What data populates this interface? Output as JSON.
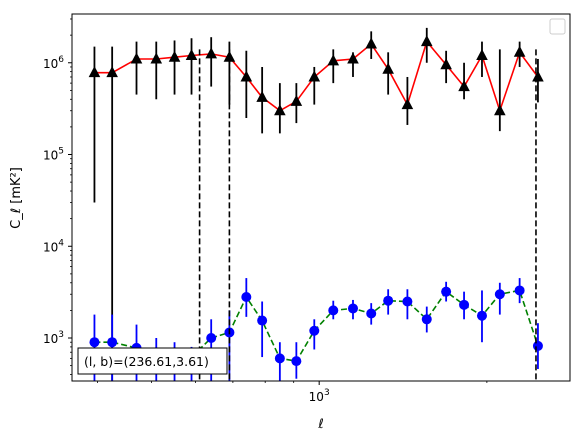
{
  "chart_data": {
    "type": "line",
    "title": "",
    "xlabel": "ℓ",
    "ylabel": "C_ℓ [mK²]",
    "x_scale": "log",
    "y_scale": "log",
    "xlim": [
      360,
      2820
    ],
    "ylim": [
      340,
      3400000
    ],
    "x_ticks": [
      {
        "value": 1000,
        "base": "10",
        "exp": "3"
      }
    ],
    "y_ticks": [
      {
        "value": 1000,
        "base": "10",
        "exp": "3"
      },
      {
        "value": 10000,
        "base": "10",
        "exp": "4"
      },
      {
        "value": 100000,
        "base": "10",
        "exp": "5"
      },
      {
        "value": 1000000,
        "base": "10",
        "exp": "6"
      }
    ],
    "grid": false,
    "legend": {
      "position": "upper right",
      "entries": []
    },
    "annotation": {
      "text": "(l, b)=(236.61,3.61)",
      "position": "lower left"
    },
    "vlines": [
      610,
      690,
      2450
    ],
    "series": [
      {
        "marker": "triangle",
        "color": "#000000",
        "line_color": "#ff0000",
        "line_style": "solid",
        "x": [
          395,
          425,
          470,
          510,
          550,
          590,
          640,
          690,
          740,
          790,
          850,
          910,
          980,
          1060,
          1150,
          1240,
          1330,
          1440,
          1560,
          1690,
          1820,
          1960,
          2110,
          2290,
          2470,
          2620,
          2740
        ],
        "y": [
          780000,
          780000,
          1100000,
          1100000,
          1150000,
          1200000,
          1250000,
          1150000,
          700000,
          420000,
          300000,
          380000,
          700000,
          1050000,
          1100000,
          1600000,
          850000,
          350000,
          1700000,
          950000,
          550000,
          1200000,
          300000,
          1300000,
          700000,
          0,
          0
        ],
        "y_low": [
          30000,
          0,
          450000,
          400000,
          450000,
          450000,
          550000,
          350000,
          250000,
          170000,
          170000,
          220000,
          350000,
          600000,
          700000,
          1100000,
          450000,
          210000,
          1000000,
          600000,
          400000,
          700000,
          180000,
          900000,
          370000,
          0,
          0
        ],
        "y_high": [
          1500000,
          1500000,
          1700000,
          1700000,
          1750000,
          1850000,
          1900000,
          1700000,
          1350000,
          900000,
          600000,
          600000,
          900000,
          1400000,
          1300000,
          2200000,
          1300000,
          700000,
          2400000,
          1350000,
          1000000,
          1700000,
          1400000,
          1700000,
          1100000,
          0,
          0
        ]
      },
      {
        "marker": "circle",
        "color": "#0000ff",
        "line_color": "#008000",
        "line_style": "dashed",
        "x": [
          395,
          425,
          470,
          510,
          550,
          590,
          640,
          690,
          740,
          790,
          850,
          910,
          980,
          1060,
          1150,
          1240,
          1330,
          1440,
          1560,
          1690,
          1820,
          1960,
          2110,
          2290,
          2470,
          2620,
          2740
        ],
        "y": [
          900,
          900,
          780,
          700,
          650,
          620,
          1000,
          1150,
          2800,
          1550,
          600,
          560,
          1200,
          2000,
          2100,
          1850,
          2550,
          2500,
          1600,
          3200,
          2300,
          1750,
          3000,
          3300,
          820,
          0,
          0
        ],
        "y_low": [
          340,
          340,
          340,
          340,
          340,
          340,
          340,
          340,
          1700,
          620,
          340,
          360,
          750,
          1600,
          1600,
          1400,
          1800,
          1600,
          1150,
          2500,
          1600,
          900,
          1800,
          2400,
          460,
          0,
          0
        ],
        "y_high": [
          1800,
          1800,
          1400,
          1000,
          900,
          800,
          1600,
          2000,
          4500,
          2500,
          900,
          900,
          1600,
          2550,
          2600,
          2400,
          3400,
          3400,
          2200,
          4100,
          3200,
          3300,
          4000,
          4500,
          1450,
          0,
          0
        ]
      }
    ]
  }
}
